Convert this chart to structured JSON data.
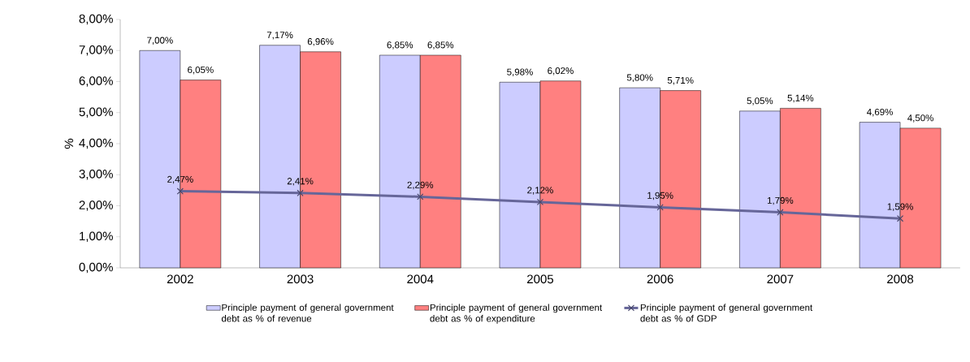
{
  "chart_data": {
    "type": "bar",
    "ylabel": "%",
    "categories": [
      "2002",
      "2003",
      "2004",
      "2005",
      "2006",
      "2007",
      "2008"
    ],
    "series": [
      {
        "name": "Principle payment of general government debt as % of revenue",
        "color": "#ccccff",
        "values": [
          7.0,
          7.17,
          6.85,
          5.98,
          5.8,
          5.05,
          4.69
        ],
        "value_labels": [
          "7,00%",
          "7,17%",
          "6,85%",
          "5,98%",
          "5,80%",
          "5,05%",
          "4,69%"
        ]
      },
      {
        "name": "Principle payment of general government debt as % of expenditure",
        "color": "#ff8080",
        "values": [
          6.05,
          6.96,
          6.85,
          6.02,
          5.71,
          5.14,
          4.5
        ],
        "value_labels": [
          "6,05%",
          "6,96%",
          "6,85%",
          "6,02%",
          "5,71%",
          "5,14%",
          "4,50%"
        ]
      },
      {
        "name": "Principle payment of general government debt as % of GDP",
        "type": "line",
        "color": "#666699",
        "marker": "cross",
        "values": [
          2.47,
          2.41,
          2.29,
          2.12,
          1.95,
          1.79,
          1.59
        ],
        "value_labels": [
          "2,47%",
          "2,41%",
          "2,29%",
          "2,12%",
          "1,95%",
          "1,79%",
          "1,59%"
        ]
      }
    ],
    "ylim": [
      0,
      8
    ],
    "yticks": [
      {
        "value": 0,
        "label": "0,00%"
      },
      {
        "value": 1,
        "label": "1,00%"
      },
      {
        "value": 2,
        "label": "2,00%"
      },
      {
        "value": 3,
        "label": "3,00%"
      },
      {
        "value": 4,
        "label": "4,00%"
      },
      {
        "value": 5,
        "label": "5,00%"
      },
      {
        "value": 6,
        "label": "6,00%"
      },
      {
        "value": 7,
        "label": "7,00%"
      },
      {
        "value": 8,
        "label": "8,00%"
      }
    ],
    "legend": "bottom"
  }
}
